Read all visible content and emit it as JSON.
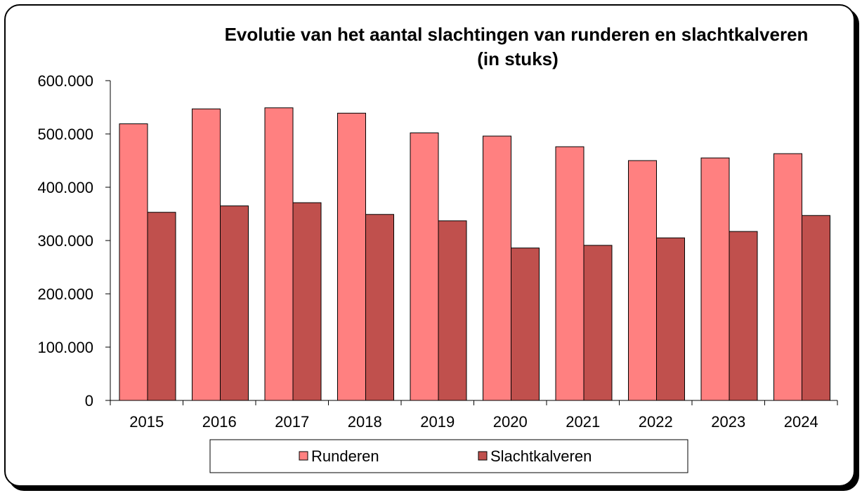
{
  "chart_data": {
    "type": "bar",
    "title": "Evolutie van het aantal slachtingen van runderen en slachtkalveren",
    "subtitle": "(in stuks)",
    "categories": [
      "2015",
      "2016",
      "2017",
      "2018",
      "2019",
      "2020",
      "2021",
      "2022",
      "2023",
      "2024"
    ],
    "series": [
      {
        "name": "Runderen",
        "color": "#ff8080",
        "values": [
          519000,
          547000,
          549000,
          539000,
          502000,
          496000,
          476000,
          450000,
          455000,
          463000
        ]
      },
      {
        "name": "Slachtkalveren",
        "color": "#c0504d",
        "values": [
          353000,
          365000,
          371000,
          349000,
          337000,
          286000,
          291000,
          305000,
          317000,
          347000
        ]
      }
    ],
    "ylim": [
      0,
      600000
    ],
    "yticks": [
      0,
      100000,
      200000,
      300000,
      400000,
      500000,
      600000
    ],
    "ytick_labels": [
      "0",
      "100.000",
      "200.000",
      "300.000",
      "400.000",
      "500.000",
      "600.000"
    ],
    "xlabel": "",
    "ylabel": "",
    "grid": false,
    "legend_position": "bottom"
  }
}
